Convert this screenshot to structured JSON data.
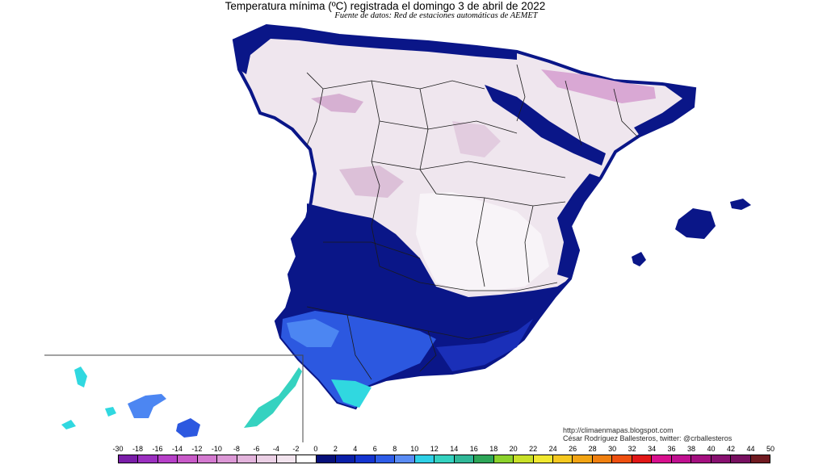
{
  "title": "Temperatura mínima (ºC) registrada el domingo 3 de abril de 2022",
  "subtitle": "Fuente de datos: Red de estaciones automáticas de AEMET",
  "credit": {
    "website": "http://climaenmapas.blogspot.com",
    "author": "César Rodríguez Ballesteros, twitter: @crballesteros"
  },
  "legend": {
    "labels": [
      "-30",
      "-18",
      "-16",
      "-14",
      "-12",
      "-10",
      "-8",
      "-6",
      "-4",
      "-2",
      "0",
      "2",
      "4",
      "6",
      "8",
      "10",
      "12",
      "14",
      "16",
      "18",
      "20",
      "22",
      "24",
      "26",
      "28",
      "30",
      "32",
      "34",
      "36",
      "38",
      "40",
      "42",
      "44",
      "50"
    ],
    "colors": [
      "#7a1ea8",
      "#9b30c0",
      "#b640c8",
      "#c85ac8",
      "#d47ad0",
      "#dc98d6",
      "#e3b4dc",
      "#ebd0e5",
      "#f2e4ee",
      "#ffffff",
      "#07107a",
      "#0a1fa8",
      "#1535d0",
      "#2f5de8",
      "#5a8cf4",
      "#2fd0e6",
      "#35d2c0",
      "#30b898",
      "#2ea658",
      "#8cd22c",
      "#c8e028",
      "#f0e830",
      "#f5c820",
      "#f2a414",
      "#f08010",
      "#ee5010",
      "#e21818",
      "#d8108e",
      "#c01090",
      "#a41080",
      "#881070",
      "#781060",
      "#701a20"
    ]
  },
  "map_colors": {
    "sea": "#ffffff",
    "cold_interior": "#efe6ee",
    "frost_patch": "#dcc0d8",
    "strong_frost": "#c9a0c9",
    "coast_navy": "#0a1688",
    "coast_blue": "#1a2fb8",
    "warm_blue": "#2c58e0",
    "warm_light": "#4c86f2",
    "cyan": "#30d8e0",
    "border": "#1a1a1a"
  }
}
